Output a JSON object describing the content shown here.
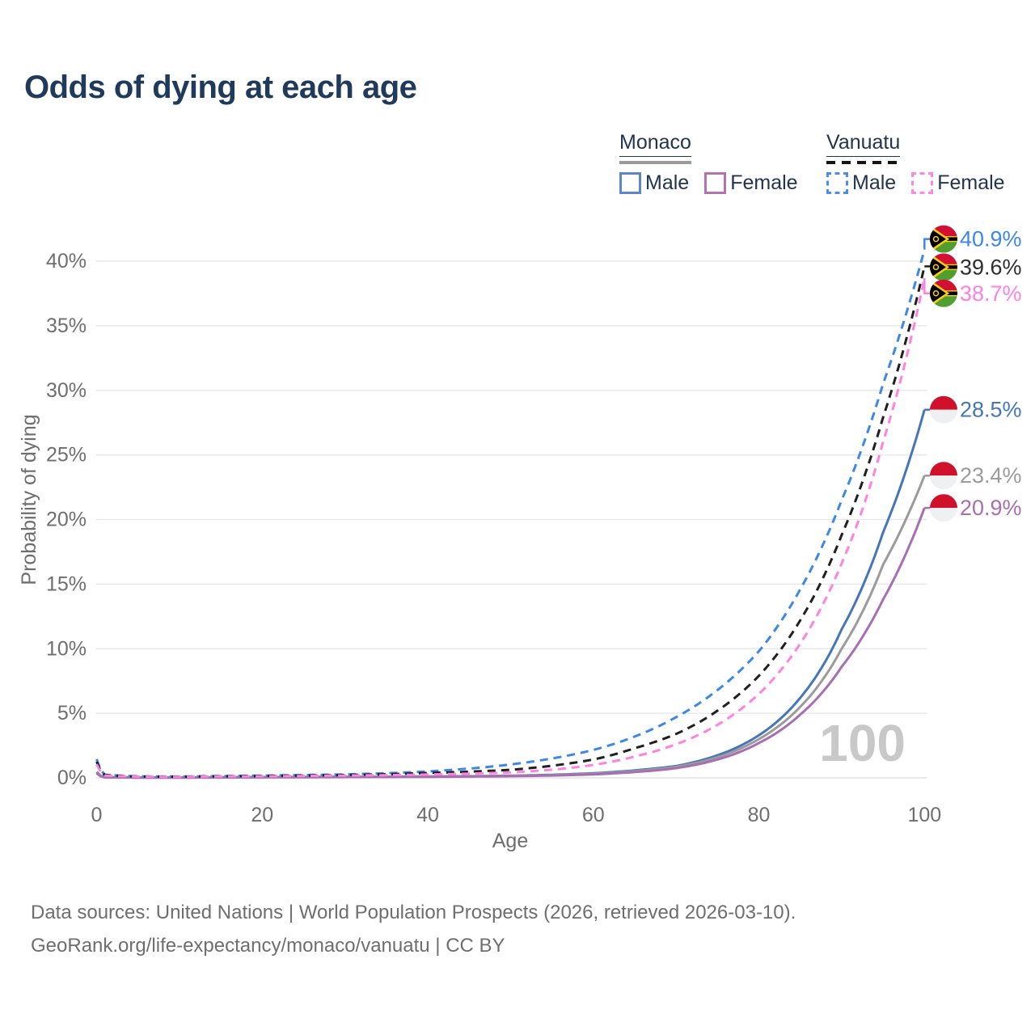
{
  "title": "Odds of dying at each age",
  "watermark": "100",
  "legend": {
    "groups": [
      {
        "label": "Monaco",
        "swatch": "solid-gray",
        "items": [
          {
            "label": "Male",
            "color": "#4576b9",
            "dash": false
          },
          {
            "label": "Female",
            "color": "#b273b0",
            "dash": false
          }
        ]
      },
      {
        "label": "Vanuatu",
        "swatch": "dashed-black",
        "items": [
          {
            "label": "Male",
            "color": "#3c87e8",
            "dash": true
          },
          {
            "label": "Female",
            "color": "#ff82e1",
            "dash": true
          }
        ]
      }
    ]
  },
  "footer": {
    "line1": "Data sources: United Nations | World Population Prospects (2026, retrieved 2026-03-10).",
    "line2": "GeoRank.org/life-expectancy/monaco/vanuatu | CC BY"
  },
  "chart_data": {
    "type": "line",
    "title": "Odds of dying at each age",
    "xlabel": "Age",
    "ylabel": "Probability of dying",
    "xlim": [
      0,
      100
    ],
    "ylim": [
      0,
      42
    ],
    "grid": "horizontal",
    "legend_position": "top-right",
    "x_ticks": [
      {
        "v": 0,
        "label": "0"
      },
      {
        "v": 20,
        "label": "20"
      },
      {
        "v": 40,
        "label": "40"
      },
      {
        "v": 60,
        "label": "60"
      },
      {
        "v": 80,
        "label": "80"
      },
      {
        "v": 100,
        "label": "100"
      }
    ],
    "y_ticks": [
      {
        "v": 0,
        "label": "0%"
      },
      {
        "v": 5,
        "label": "5%"
      },
      {
        "v": 10,
        "label": "10%"
      },
      {
        "v": 15,
        "label": "15%"
      },
      {
        "v": 20,
        "label": "20%"
      },
      {
        "v": 25,
        "label": "25%"
      },
      {
        "v": 30,
        "label": "30%"
      },
      {
        "v": 35,
        "label": "35%"
      },
      {
        "v": 40,
        "label": "40%"
      }
    ],
    "ages": [
      0,
      1,
      5,
      10,
      15,
      20,
      25,
      30,
      35,
      40,
      45,
      50,
      55,
      60,
      65,
      70,
      75,
      80,
      85,
      90,
      95,
      100
    ],
    "series": [
      {
        "name": "Monaco Male",
        "country": "Monaco",
        "sex": "Male",
        "style": "solid",
        "color": "#4576b9",
        "label_color": "#4576b9",
        "end_label": "28.5%",
        "end_value": 28.5,
        "values": [
          0.45,
          0.06,
          0.03,
          0.03,
          0.04,
          0.06,
          0.07,
          0.08,
          0.09,
          0.11,
          0.13,
          0.17,
          0.24,
          0.36,
          0.58,
          0.92,
          1.75,
          3.3,
          6.2,
          11.5,
          19.0,
          28.5
        ]
      },
      {
        "name": "Monaco Total",
        "country": "Monaco",
        "sex": "Both",
        "style": "solid",
        "color": "#9b9b9b",
        "label_color": "#9b9b9b",
        "end_label": "23.4%",
        "end_value": 23.4,
        "values": [
          0.4,
          0.05,
          0.025,
          0.025,
          0.035,
          0.05,
          0.06,
          0.07,
          0.08,
          0.1,
          0.12,
          0.15,
          0.21,
          0.32,
          0.52,
          0.85,
          1.6,
          3.0,
          5.5,
          10.0,
          16.5,
          23.4
        ]
      },
      {
        "name": "Monaco Female",
        "country": "Monaco",
        "sex": "Female",
        "style": "solid",
        "color": "#a76fb2",
        "label_color": "#a76fb2",
        "end_label": "20.9%",
        "end_value": 20.9,
        "values": [
          0.35,
          0.04,
          0.02,
          0.02,
          0.03,
          0.04,
          0.05,
          0.06,
          0.07,
          0.08,
          0.1,
          0.13,
          0.18,
          0.27,
          0.45,
          0.75,
          1.42,
          2.7,
          4.9,
          8.6,
          13.8,
          20.9
        ]
      },
      {
        "name": "Vanuatu Male",
        "country": "Vanuatu",
        "sex": "Male",
        "style": "dashed",
        "color": "#3c87e8",
        "label_color": "#3c87e8",
        "end_label": "40.9%",
        "end_value": 40.9,
        "values": [
          1.45,
          0.25,
          0.12,
          0.1,
          0.14,
          0.18,
          0.22,
          0.27,
          0.36,
          0.5,
          0.72,
          1.04,
          1.5,
          2.16,
          3.2,
          4.7,
          6.8,
          9.8,
          14.6,
          21.5,
          30.5,
          40.9
        ]
      },
      {
        "name": "Vanuatu Total",
        "country": "Vanuatu",
        "sex": "Both",
        "style": "dashed",
        "color": "#1f1f1f",
        "label_color": "#2e2e2e",
        "end_label": "39.6%",
        "end_value": 39.6,
        "values": [
          1.25,
          0.22,
          0.1,
          0.09,
          0.12,
          0.15,
          0.18,
          0.22,
          0.28,
          0.38,
          0.48,
          0.62,
          0.94,
          1.42,
          2.3,
          3.4,
          5.2,
          7.9,
          12.2,
          18.8,
          27.9,
          39.6
        ]
      },
      {
        "name": "Vanuatu Female",
        "country": "Vanuatu",
        "sex": "Female",
        "style": "dashed",
        "color": "#ff82e1",
        "label_color": "#ff82e1",
        "end_label": "38.7%",
        "end_value": 38.7,
        "values": [
          1.05,
          0.18,
          0.09,
          0.08,
          0.1,
          0.12,
          0.15,
          0.18,
          0.21,
          0.26,
          0.33,
          0.42,
          0.63,
          1.0,
          1.65,
          2.6,
          4.1,
          6.5,
          10.4,
          16.6,
          26.0,
          38.7
        ]
      }
    ]
  }
}
